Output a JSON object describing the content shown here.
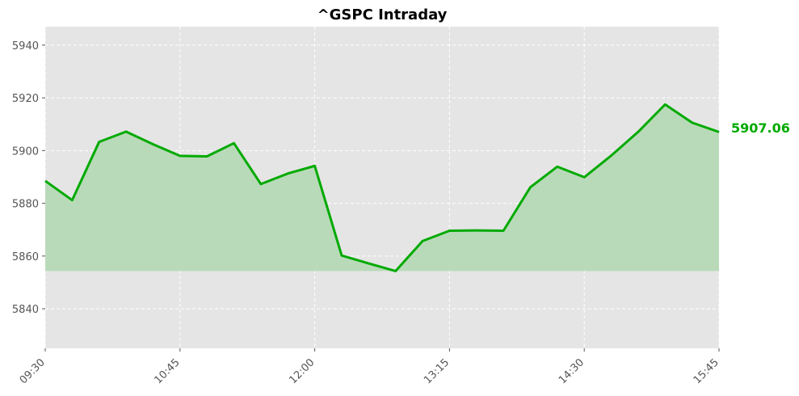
{
  "chart_data": {
    "type": "area",
    "title": "^GSPC Intraday",
    "xlabel": "",
    "ylabel": "",
    "ylim": [
      5825,
      5947
    ],
    "yticks": [
      5840,
      5860,
      5880,
      5900,
      5920,
      5940
    ],
    "xtick_labels": [
      "09:30",
      "10:45",
      "12:00",
      "13:15",
      "14:30",
      "15:45"
    ],
    "x": [
      "09:30",
      "09:45",
      "10:00",
      "10:15",
      "10:30",
      "10:45",
      "11:00",
      "11:15",
      "11:30",
      "11:45",
      "12:00",
      "12:15",
      "12:30",
      "12:45",
      "13:00",
      "13:15",
      "13:30",
      "13:45",
      "14:00",
      "14:15",
      "14:30",
      "14:45",
      "15:00",
      "15:15",
      "15:30",
      "15:45"
    ],
    "values": [
      5888.5,
      5881.2,
      5903.3,
      5907.2,
      5902.4,
      5898.0,
      5897.8,
      5902.8,
      5887.3,
      5891.3,
      5894.2,
      5860.2,
      5857.2,
      5854.3,
      5865.7,
      5869.6,
      5869.7,
      5869.6,
      5886.1,
      5893.9,
      5889.9,
      5898.1,
      5907.1,
      5917.5,
      5910.6,
      5907.06
    ],
    "fill_baseline": 5854.3,
    "last_value_label": "5907.06",
    "grid": true,
    "line_color": "#00aa00",
    "fill_color": "#b9dab9",
    "background_color": "#e5e5e5"
  }
}
